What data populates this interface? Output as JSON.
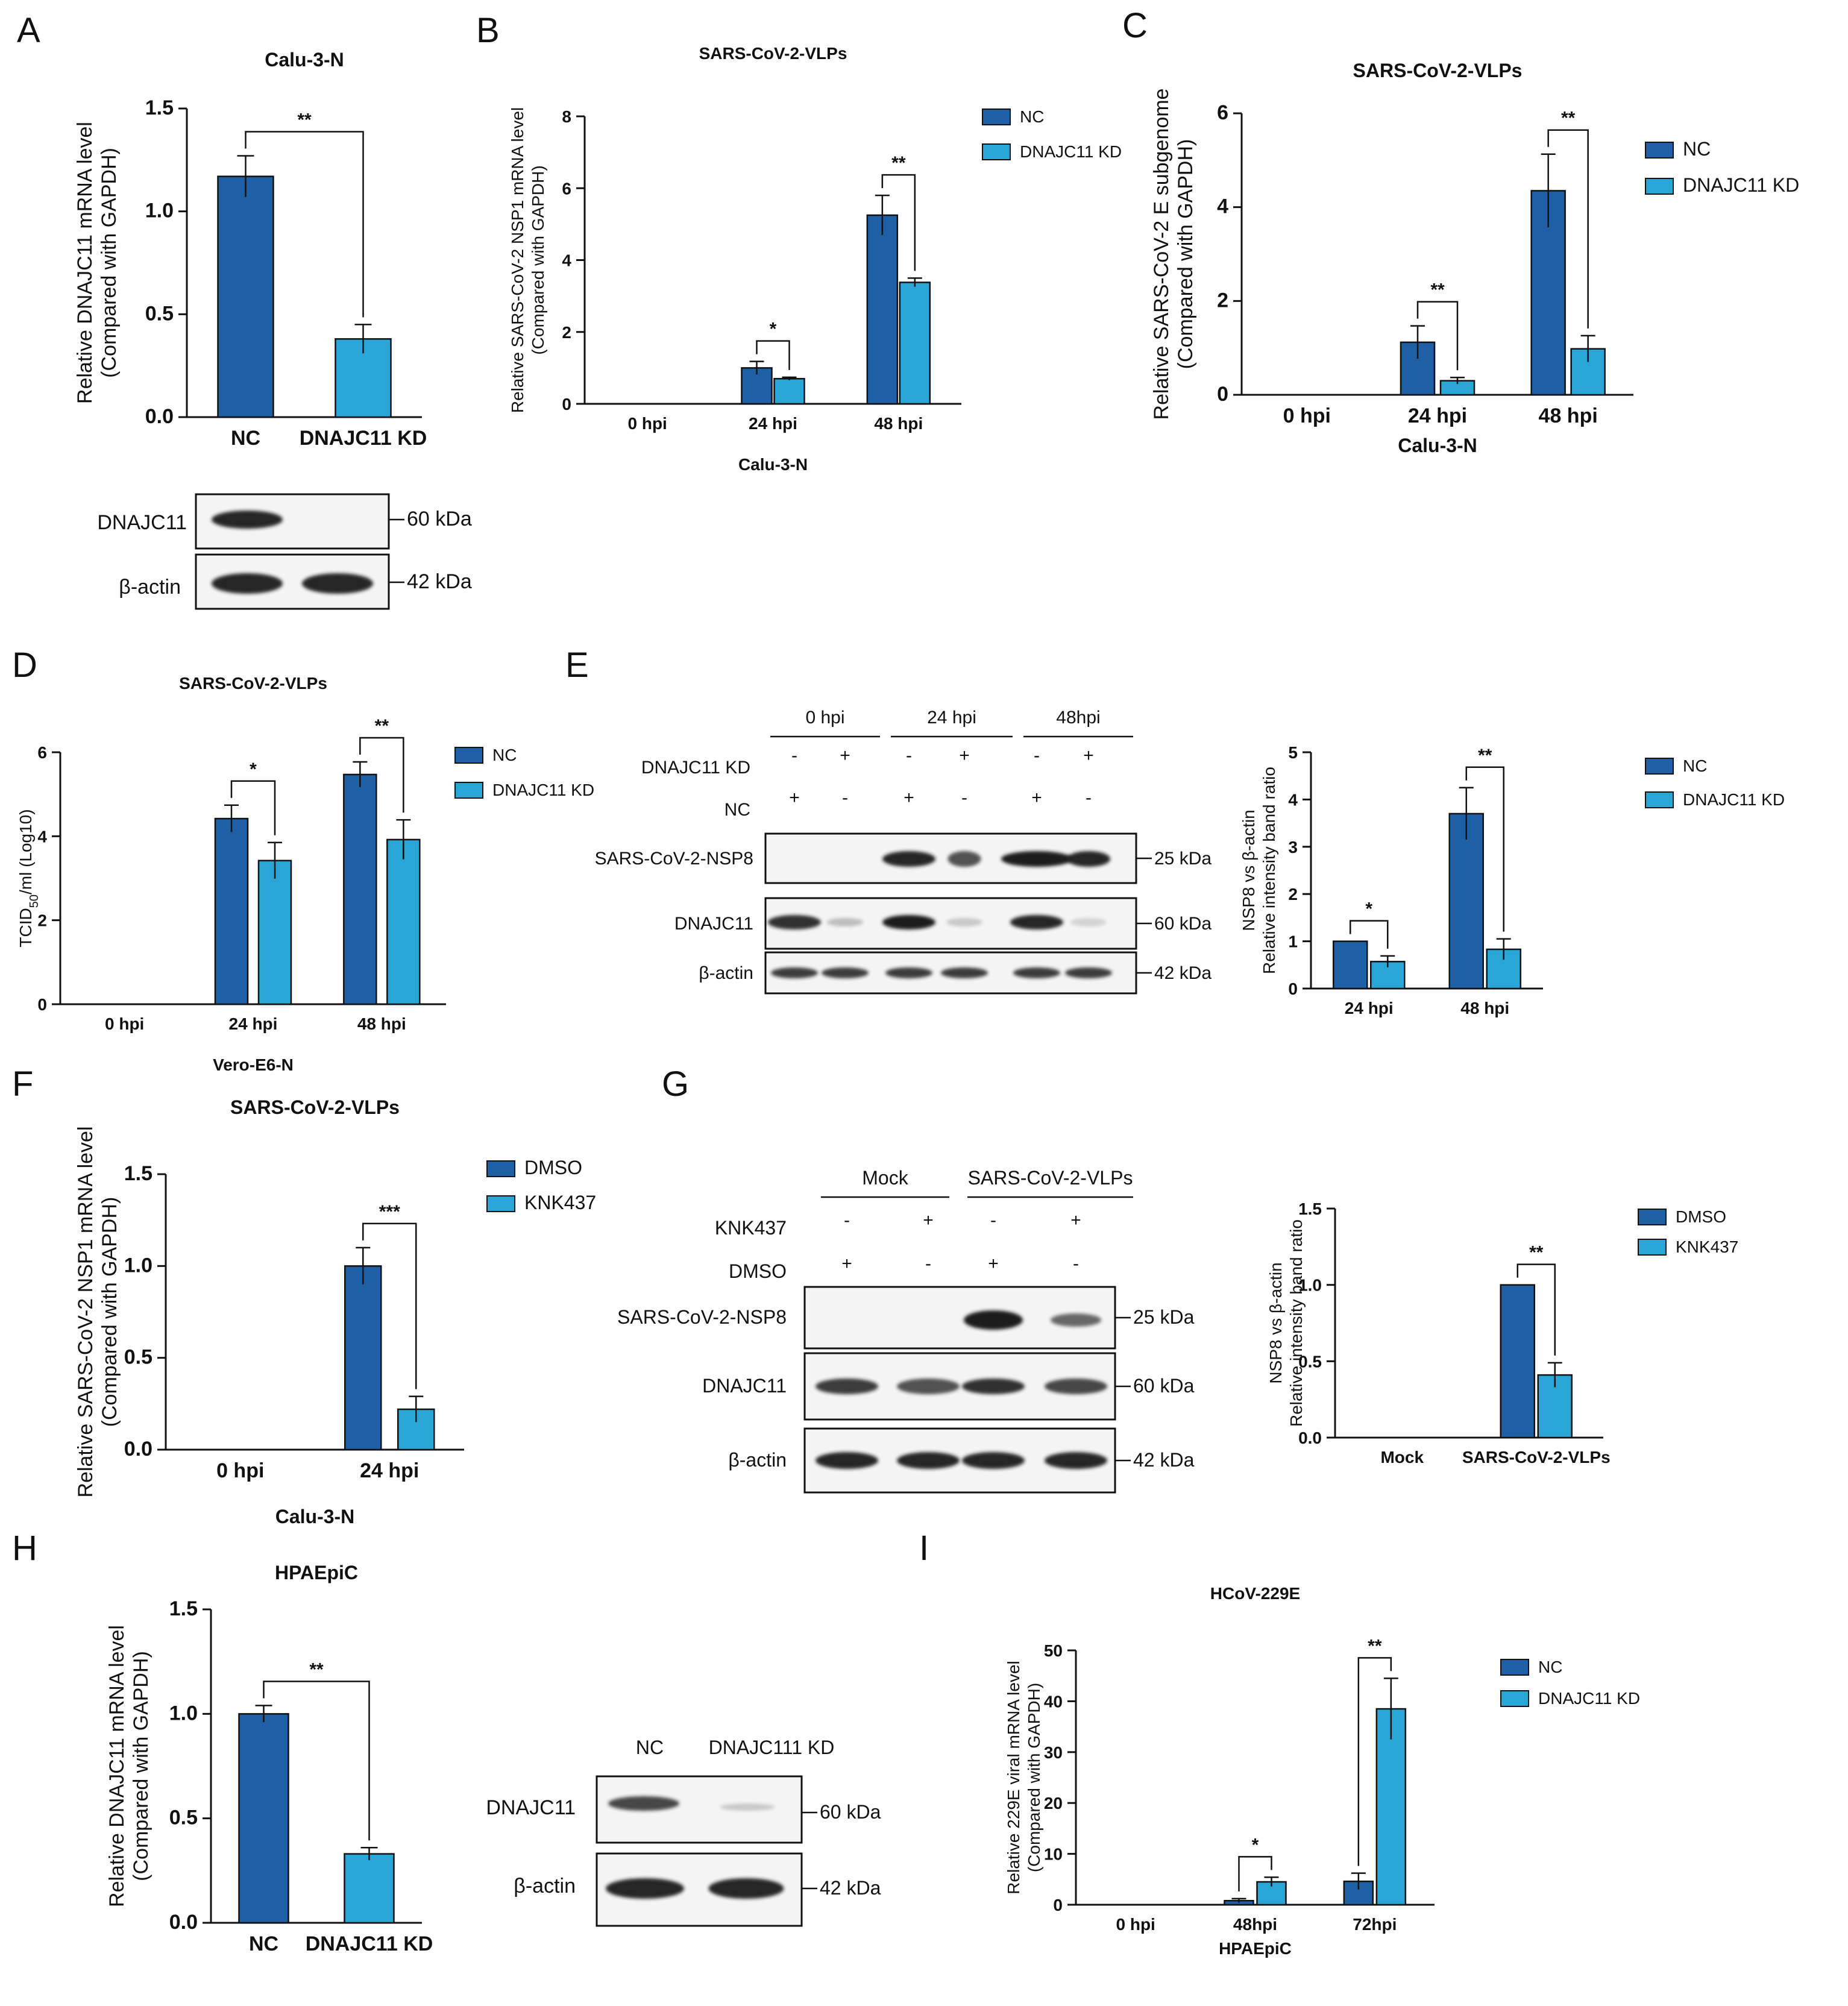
{
  "colors": {
    "nc": "#1f5fa6",
    "kd": "#2aa6d6",
    "band": "#1a1a1a"
  },
  "panel_letters": [
    "A",
    "B",
    "C",
    "D",
    "E",
    "F",
    "G",
    "H",
    "I"
  ],
  "chart_data": [
    {
      "id": "A",
      "type": "bar",
      "title": "Calu-3-N",
      "ylabel": [
        "Relative DNAJC11 mRNA level",
        "(Compared with GAPDH)"
      ],
      "categories": [
        "NC",
        "DNAJC11 KD"
      ],
      "values": [
        1.17,
        0.38
      ],
      "errors": [
        0.1,
        0.07
      ],
      "ylim": [
        0,
        1.5
      ],
      "yticks": [
        "0.0",
        "0.5",
        "1.0",
        "1.5"
      ],
      "sig": [
        {
          "label": "**"
        }
      ]
    },
    {
      "id": "B",
      "type": "bar",
      "title": "SARS-CoV-2-VLPs",
      "xlabel": "Calu-3-N",
      "ylabel": [
        "Relative SARS-CoV-2 NSP1 mRNA  level",
        "(Compared with GAPDH)"
      ],
      "categories": [
        "0 hpi",
        "24 hpi",
        "48 hpi"
      ],
      "series": [
        {
          "name": "NC",
          "values": [
            0,
            1.0,
            5.25
          ],
          "errors": [
            0,
            0.18,
            0.55
          ]
        },
        {
          "name": "DNAJC11 KD",
          "values": [
            0,
            0.7,
            3.38
          ],
          "errors": [
            0,
            0.04,
            0.12
          ]
        }
      ],
      "ylim": [
        0,
        8
      ],
      "yticks": [
        "0",
        "2",
        "4",
        "6",
        "8"
      ],
      "sig": [
        {
          "label": "*"
        },
        {
          "label": "**"
        }
      ]
    },
    {
      "id": "C",
      "type": "bar",
      "title": "SARS-CoV-2-VLPs",
      "xlabel": "Calu-3-N",
      "ylabel": [
        "Relative SARS-CoV-2 E subgenome",
        "(Compared with GAPDH)"
      ],
      "categories": [
        "0 hpi",
        "24 hpi",
        "48 hpi"
      ],
      "series": [
        {
          "name": "NC",
          "values": [
            0,
            1.12,
            4.35
          ],
          "errors": [
            0,
            0.35,
            0.78
          ]
        },
        {
          "name": "DNAJC11 KD",
          "values": [
            0,
            0.3,
            0.98
          ],
          "errors": [
            0,
            0.07,
            0.28
          ]
        }
      ],
      "ylim": [
        0,
        6
      ],
      "yticks": [
        "0",
        "2",
        "4",
        "6"
      ],
      "sig": [
        {
          "label": "**"
        },
        {
          "label": "**"
        }
      ]
    },
    {
      "id": "D",
      "type": "bar",
      "title": "SARS-CoV-2-VLPs",
      "xlabel": "Vero-E6-N",
      "ylabel": [
        "TCID50/ml (Log10)"
      ],
      "categories": [
        "0 hpi",
        "24 hpi",
        "48 hpi"
      ],
      "series": [
        {
          "name": "NC",
          "values": [
            0,
            4.42,
            5.47
          ],
          "errors": [
            0,
            0.32,
            0.3
          ]
        },
        {
          "name": "DNAJC11 KD",
          "values": [
            0,
            3.42,
            3.92
          ],
          "errors": [
            0,
            0.43,
            0.47
          ]
        }
      ],
      "ylim": [
        0,
        6
      ],
      "yticks": [
        "0",
        "2",
        "4",
        "6"
      ],
      "sig": [
        {
          "label": "*"
        },
        {
          "label": "**"
        }
      ]
    },
    {
      "id": "E-chart",
      "type": "bar",
      "ylabel": [
        "NSP8 vs β-actin",
        "Relative intensity band ratio"
      ],
      "categories": [
        "24 hpi",
        "48 hpi"
      ],
      "series": [
        {
          "name": "NC",
          "values": [
            1.0,
            3.7
          ],
          "errors": [
            0,
            0.55
          ]
        },
        {
          "name": "DNAJC11 KD",
          "values": [
            0.57,
            0.83
          ],
          "errors": [
            0.12,
            0.22
          ]
        }
      ],
      "ylim": [
        0,
        5
      ],
      "yticks": [
        "0",
        "1",
        "2",
        "3",
        "4",
        "5"
      ],
      "sig": [
        {
          "label": "*"
        },
        {
          "label": "**"
        }
      ]
    },
    {
      "id": "F",
      "type": "bar",
      "title": "SARS-CoV-2-VLPs",
      "xlabel": "Calu-3-N",
      "ylabel": [
        "Relative SARS-CoV-2 NSP1 mRNA  level",
        "(Compared with GAPDH)"
      ],
      "categories": [
        "0 hpi",
        "24 hpi"
      ],
      "series": [
        {
          "name": "DMSO",
          "values": [
            0,
            1.0
          ],
          "errors": [
            0,
            0.1
          ]
        },
        {
          "name": "KNK437",
          "values": [
            0,
            0.22
          ],
          "errors": [
            0,
            0.07
          ]
        }
      ],
      "ylim": [
        0,
        1.5
      ],
      "yticks": [
        "0.0",
        "0.5",
        "1.0",
        "1.5"
      ],
      "sig": [
        {
          "label": "***"
        }
      ]
    },
    {
      "id": "G-chart",
      "type": "bar",
      "ylabel": [
        "NSP8 vs β-actin",
        "Relative intensity band ratio"
      ],
      "categories": [
        "Mock",
        "SARS-CoV-2-VLPs"
      ],
      "series": [
        {
          "name": "DMSO",
          "values": [
            0,
            1.0
          ],
          "errors": [
            0,
            0
          ]
        },
        {
          "name": "KNK437",
          "values": [
            0,
            0.41
          ],
          "errors": [
            0,
            0.08
          ]
        }
      ],
      "ylim": [
        0,
        1.5
      ],
      "yticks": [
        "0.0",
        "0.5",
        "1.0",
        "1.5"
      ],
      "sig": [
        {
          "label": "**"
        }
      ]
    },
    {
      "id": "H",
      "type": "bar",
      "title": "HPAEpiC",
      "ylabel": [
        "Relative DNAJC11 mRNA level",
        "(Compared with GAPDH)"
      ],
      "categories": [
        "NC",
        "DNAJC11 KD"
      ],
      "values": [
        1.0,
        0.33
      ],
      "errors": [
        0.04,
        0.03
      ],
      "ylim": [
        0,
        1.5
      ],
      "yticks": [
        "0.0",
        "0.5",
        "1.0",
        "1.5"
      ],
      "sig": [
        {
          "label": "**"
        }
      ]
    },
    {
      "id": "I",
      "type": "bar",
      "title": "HCoV-229E",
      "xlabel": "HPAEpiC",
      "ylabel": [
        "Relative 229E viral mRNA level",
        "(Compared with GAPDH)"
      ],
      "categories": [
        "0 hpi",
        "48hpi",
        "72hpi"
      ],
      "series": [
        {
          "name": "NC",
          "values": [
            0,
            0.8,
            4.6
          ],
          "errors": [
            0,
            0.4,
            1.6
          ]
        },
        {
          "name": "DNAJC11 KD",
          "values": [
            0,
            4.5,
            38.5
          ],
          "errors": [
            0,
            0.9,
            6.0
          ]
        }
      ],
      "ylim": [
        0,
        50
      ],
      "yticks": [
        "0",
        "10",
        "20",
        "30",
        "40",
        "50"
      ],
      "sig": [
        {
          "label": "*"
        },
        {
          "label": "**"
        }
      ]
    }
  ],
  "blots": {
    "A": {
      "rows": [
        "DNAJC11",
        "β-actin"
      ],
      "sizes": [
        "60 kDa",
        "42 kDa"
      ]
    },
    "E": {
      "groups": [
        "0 hpi",
        "24 hpi",
        "48hpi"
      ],
      "cond_rows": [
        {
          "label": "DNAJC11 KD",
          "signs": [
            "-",
            "+",
            "-",
            "+",
            "-",
            "+"
          ]
        },
        {
          "label": "NC",
          "signs": [
            "+",
            "-",
            "+",
            "-",
            "+",
            "-"
          ]
        }
      ],
      "rows": [
        "SARS-CoV-2-NSP8",
        "DNAJC11",
        "β-actin"
      ],
      "sizes": [
        "25 kDa",
        "60 kDa",
        "42 kDa"
      ]
    },
    "G": {
      "groups": [
        "Mock",
        "SARS-CoV-2-VLPs"
      ],
      "cond_rows": [
        {
          "label": "KNK437",
          "signs": [
            "-",
            "+",
            "-",
            "+"
          ]
        },
        {
          "label": "DMSO",
          "signs": [
            "+",
            "-",
            "+",
            "-"
          ]
        }
      ],
      "rows": [
        "SARS-CoV-2-NSP8",
        "DNAJC11",
        "β-actin"
      ],
      "sizes": [
        "25 kDa",
        "60 kDa",
        "42 kDa"
      ]
    },
    "H": {
      "lanes": [
        "NC",
        "DNAJC111 KD"
      ],
      "rows": [
        "DNAJC11",
        "β-actin"
      ],
      "sizes": [
        "60 kDa",
        "42 kDa"
      ]
    }
  }
}
